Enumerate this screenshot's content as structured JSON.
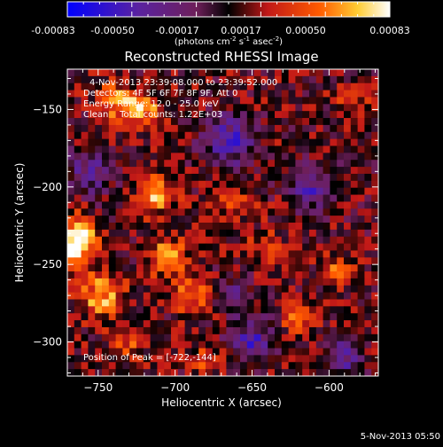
{
  "chart_data": {
    "type": "heatmap",
    "title": "Reconstructed RHESSI Image",
    "xlabel": "Heliocentric X (arcsec)",
    "ylabel": "Heliocentric Y (arcsec)",
    "xlim": [
      -770,
      -568
    ],
    "ylim": [
      -322,
      -124
    ],
    "xticks": [
      -750,
      -700,
      -650,
      -600
    ],
    "yticks": [
      -150,
      -200,
      -250,
      -300
    ],
    "colorbar": {
      "ticks": [
        "-0.00083",
        "-0.00050",
        "-0.00017",
        "0.00017",
        "0.00050",
        "0.00083"
      ],
      "unit_prefix": "(photons cm",
      "unit_exp1": "-2",
      "unit_mid": " s",
      "unit_exp2": "-1",
      "unit_mid2": " asec",
      "unit_exp3": "-2",
      "unit_suffix": ")",
      "range": [
        -0.00083,
        0.00083
      ]
    },
    "info": {
      "time_range": "4-Nov-2013 23:39:08.000 to 23:39:52.000",
      "detectors": "Detectors: 4F 5F 6F 7F 8F 9F, Att 0",
      "energy": "Energy Range: 12.0 - 25.0 keV",
      "method": "Clean    Total counts: 1.22E+03"
    },
    "peak": "Position of Peak = [-722,-144]",
    "date_stamp": "5-Nov-2013 05:50",
    "grid_cols": 45,
    "grid_rows": 44,
    "seed": 20131104,
    "hot_spots": [
      {
        "x": -765,
        "y": -235,
        "amp": 0.00085,
        "r": 14
      },
      {
        "x": -748,
        "y": -270,
        "amp": 0.00055,
        "r": 14
      },
      {
        "x": -722,
        "y": -150,
        "amp": 0.00055,
        "r": 12
      },
      {
        "x": -740,
        "y": -145,
        "amp": 0.00045,
        "r": 12
      },
      {
        "x": -712,
        "y": -205,
        "amp": 0.00055,
        "r": 12
      },
      {
        "x": -705,
        "y": -245,
        "amp": 0.00055,
        "r": 12
      },
      {
        "x": -690,
        "y": -270,
        "amp": 0.00045,
        "r": 11
      },
      {
        "x": -660,
        "y": -210,
        "amp": 0.0003,
        "r": 11
      },
      {
        "x": -640,
        "y": -240,
        "amp": 0.00035,
        "r": 11
      },
      {
        "x": -620,
        "y": -285,
        "amp": 0.0004,
        "r": 10
      },
      {
        "x": -595,
        "y": -255,
        "amp": 0.00035,
        "r": 10
      },
      {
        "x": -585,
        "y": -145,
        "amp": 0.0003,
        "r": 10
      },
      {
        "x": -730,
        "y": -300,
        "amp": 0.0003,
        "r": 11
      },
      {
        "x": -680,
        "y": -310,
        "amp": 0.0003,
        "r": 10
      }
    ],
    "cold_spots": [
      {
        "x": -665,
        "y": -170,
        "amp": -0.00055,
        "r": 16
      },
      {
        "x": -755,
        "y": -190,
        "amp": -0.00045,
        "r": 14
      },
      {
        "x": -610,
        "y": -200,
        "amp": -0.0005,
        "r": 14
      },
      {
        "x": -650,
        "y": -300,
        "amp": -0.00055,
        "r": 14
      },
      {
        "x": -590,
        "y": -310,
        "amp": -0.00045,
        "r": 12
      },
      {
        "x": -660,
        "y": -270,
        "amp": -0.00035,
        "r": 10
      }
    ]
  }
}
